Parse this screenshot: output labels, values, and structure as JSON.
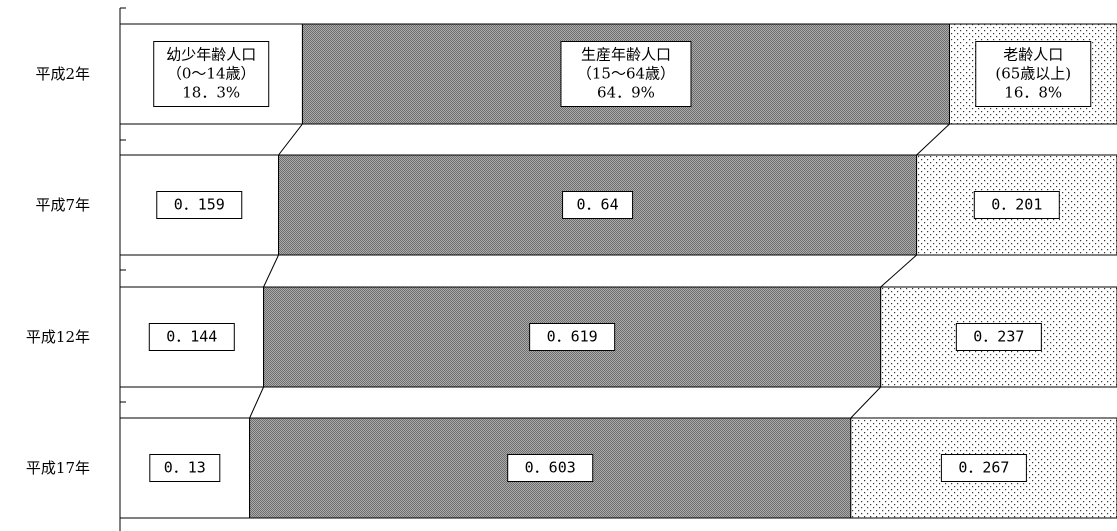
{
  "chart_data": {
    "type": "bar",
    "orientation": "horizontal",
    "stacked": "100%",
    "categories": [
      "平成2年",
      "平成7年",
      "平成12年",
      "平成17年"
    ],
    "series": [
      {
        "name": "幼少年齢人口",
        "sub": "（0～14歳）",
        "values": [
          0.183,
          0.159,
          0.144,
          0.13
        ],
        "pattern": "white"
      },
      {
        "name": "生産年齢人口",
        "sub": "（15～64歳）",
        "values": [
          0.649,
          0.64,
          0.619,
          0.603
        ],
        "pattern": "dense"
      },
      {
        "name": "老齢人口",
        "sub": "(65歳以上)",
        "values": [
          0.168,
          0.201,
          0.237,
          0.267
        ],
        "pattern": "dots"
      }
    ],
    "data_labels": [
      [
        "18．3%",
        "64．9%",
        "16．8%"
      ],
      [
        "0．159",
        "0．64",
        "0．201"
      ],
      [
        "0．144",
        "0．619",
        "0．237"
      ],
      [
        "0．13",
        "0．603",
        "0．267"
      ]
    ],
    "series_lines": true,
    "colors": {
      "dense": "#8f8f8f",
      "dots": "#ffffff",
      "border": "#000000"
    }
  }
}
